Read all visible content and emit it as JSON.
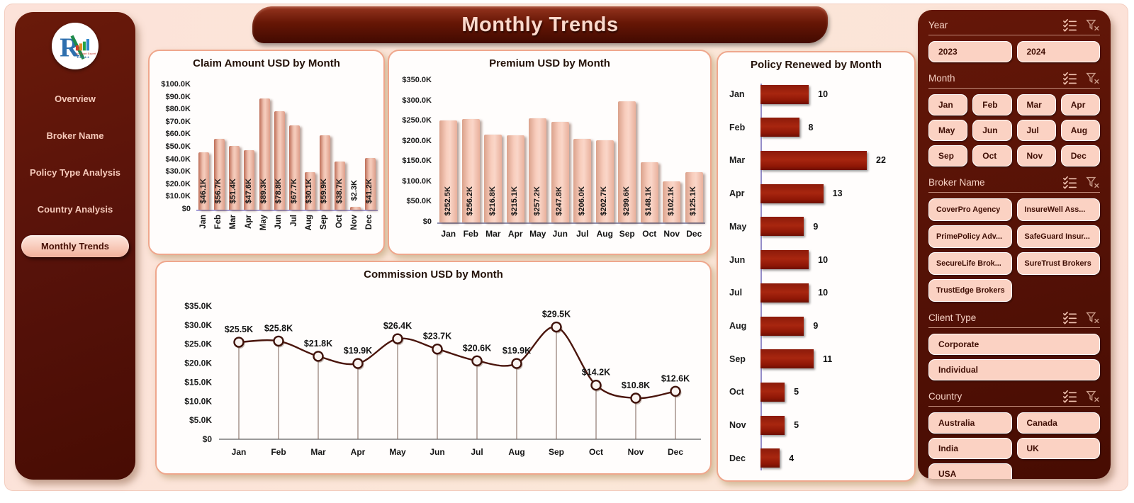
{
  "title_banner": {
    "text": "Monthly Trends"
  },
  "sidebar": {
    "items": [
      {
        "label": "Overview",
        "active": false
      },
      {
        "label": "Broker Name",
        "active": false
      },
      {
        "label": "Policy Type Analysis",
        "active": false
      },
      {
        "label": "Country Analysis",
        "active": false
      },
      {
        "label": "Monthly Trends",
        "active": true
      }
    ]
  },
  "months": [
    "Jan",
    "Feb",
    "Mar",
    "Apr",
    "May",
    "Jun",
    "Jul",
    "Aug",
    "Sep",
    "Oct",
    "Nov",
    "Dec"
  ],
  "chart_data": [
    {
      "id": "claim",
      "type": "bar",
      "title": "Claim Amount USD by Month",
      "categories": [
        "Jan",
        "Feb",
        "Mar",
        "Apr",
        "May",
        "Jun",
        "Jul",
        "Aug",
        "Sep",
        "Oct",
        "Nov",
        "Dec"
      ],
      "values": [
        46100,
        56700,
        51400,
        47600,
        89300,
        78800,
        67700,
        30100,
        59900,
        38700,
        2300,
        41200
      ],
      "data_labels": [
        "$46.1K",
        "$56.7K",
        "$51.4K",
        "$47.6K",
        "$89.3K",
        "$78.8K",
        "$67.7K",
        "$30.1K",
        "$59.9K",
        "$38.7K",
        "$2.3K",
        "$41.2K"
      ],
      "ylim": [
        0,
        100000
      ],
      "ytick_step": 10000,
      "xlabel": "",
      "ylabel": "",
      "grid": false,
      "rotated_x_labels": true
    },
    {
      "id": "premium",
      "type": "bar",
      "title": "Premium USD by Month",
      "categories": [
        "Jan",
        "Feb",
        "Mar",
        "Apr",
        "May",
        "Jun",
        "Jul",
        "Aug",
        "Sep",
        "Oct",
        "Nov",
        "Dec"
      ],
      "values": [
        252500,
        256200,
        216800,
        215100,
        257200,
        247800,
        206000,
        202700,
        299600,
        148100,
        102100,
        125100
      ],
      "data_labels": [
        "$252.5K",
        "$256.2K",
        "$216.8K",
        "$215.1K",
        "$257.2K",
        "$247.8K",
        "$206.0K",
        "$202.7K",
        "$299.6K",
        "$148.1K",
        "$102.1K",
        "$125.1K"
      ],
      "ylim": [
        0,
        350000
      ],
      "ytick_step": 50000,
      "xlabel": "",
      "ylabel": "",
      "grid": false,
      "rotated_x_labels": false
    },
    {
      "id": "commission",
      "type": "line",
      "title": "Commission USD by Month",
      "categories": [
        "Jan",
        "Feb",
        "Mar",
        "Apr",
        "May",
        "Jun",
        "Jul",
        "Aug",
        "Sep",
        "Oct",
        "Nov",
        "Dec"
      ],
      "values": [
        25500,
        25800,
        21800,
        19900,
        26400,
        23700,
        20600,
        19900,
        29500,
        14200,
        10800,
        12600
      ],
      "data_labels": [
        "$25.5K",
        "$25.8K",
        "$21.8K",
        "$19.9K",
        "$26.4K",
        "$23.7K",
        "$20.6K",
        "$19.9K",
        "$29.5K",
        "$14.2K",
        "$10.8K",
        "$12.6K"
      ],
      "ylim": [
        0,
        35000
      ],
      "ytick_step": 5000,
      "xlabel": "",
      "ylabel": "",
      "grid": false,
      "markers": true,
      "drop_lines": true
    },
    {
      "id": "policy",
      "type": "hbar",
      "title": "Policy Renewed by Month",
      "categories": [
        "Jan",
        "Feb",
        "Mar",
        "Apr",
        "May",
        "Jun",
        "Jul",
        "Aug",
        "Sep",
        "Oct",
        "Nov",
        "Dec"
      ],
      "values": [
        10,
        8,
        22,
        13,
        9,
        10,
        10,
        9,
        11,
        5,
        5,
        4
      ],
      "xmax": 22,
      "grid": false
    }
  ],
  "slicers": [
    {
      "title": "Year",
      "columns": 2,
      "items": [
        "2023",
        "2024"
      ]
    },
    {
      "title": "Month",
      "columns": 4,
      "items": [
        "Jan",
        "Feb",
        "Mar",
        "Apr",
        "May",
        "Jun",
        "Jul",
        "Aug",
        "Sep",
        "Oct",
        "Nov",
        "Dec"
      ]
    },
    {
      "title": "Broker Name",
      "columns": 2,
      "small": true,
      "items": [
        "CoverPro Agency",
        "InsureWell Ass...",
        "PrimePolicy Adv...",
        "SafeGuard Insur...",
        "SecureLife Brok...",
        "SureTrust Brokers",
        "TrustEdge Brokers"
      ]
    },
    {
      "title": "Client Type",
      "columns": 1,
      "items": [
        "Corporate",
        "Individual"
      ]
    },
    {
      "title": "Country",
      "columns": 2,
      "items": [
        "Australia",
        "Canada",
        "India",
        "UK",
        "USA"
      ]
    }
  ],
  "colors": {
    "panel_maroon": "#571208",
    "canvas_pink": "#fce2d9",
    "bar_salmon": "#f2c3b2",
    "bar_dark_red": "#9c1d0c",
    "line_maroon": "#4a150c",
    "button_pink": "#fbd2c3",
    "axis_lavender": "#958cc8",
    "title_text": "#fcd9cc"
  },
  "icons": {
    "slicer_header": [
      "multi-select-icon",
      "clear-filter-icon"
    ],
    "logo": "company-logo"
  }
}
